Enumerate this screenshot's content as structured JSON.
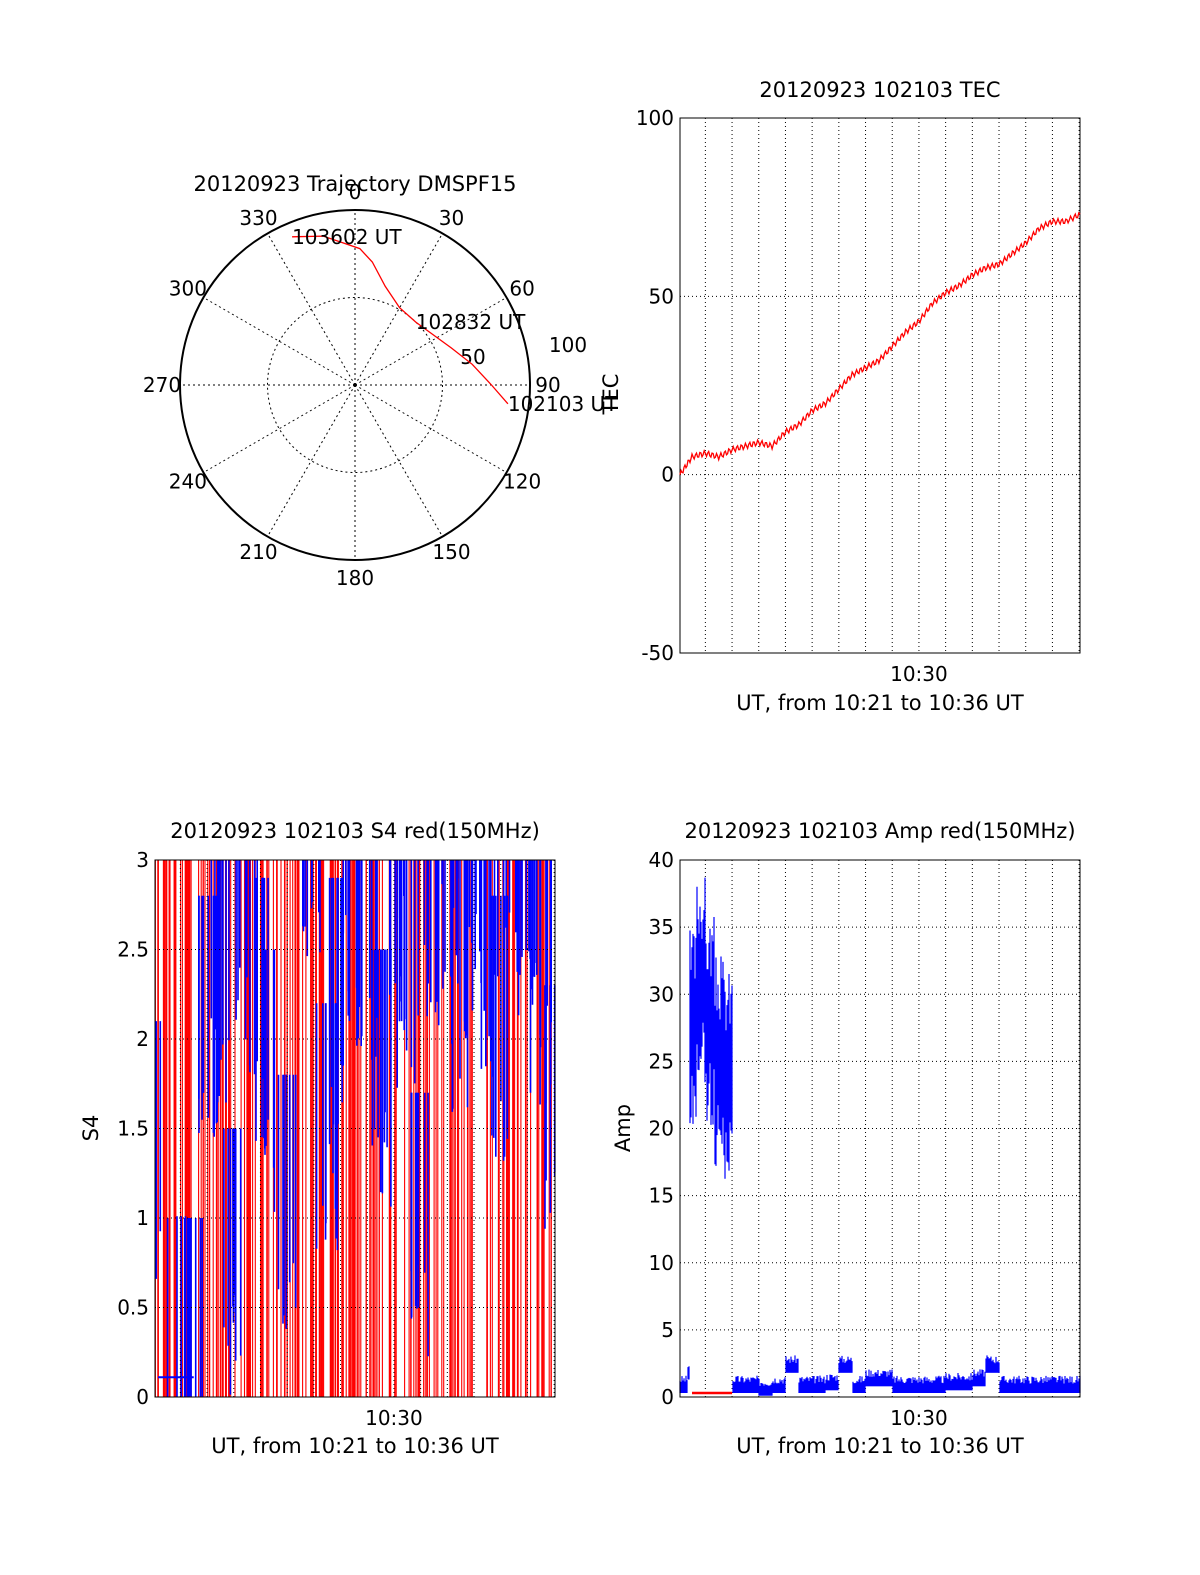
{
  "chart_data": [
    {
      "type": "polar-trajectory",
      "title": "20120923 Trajectory DMSPF15",
      "angle_labels": [
        "0",
        "30",
        "60",
        "90",
        "120",
        "150",
        "180",
        "210",
        "240",
        "270",
        "300",
        "330"
      ],
      "radial_labels": [
        "50",
        "100"
      ],
      "rlim": [
        0,
        100
      ],
      "trajectory": {
        "color": "#ff0000",
        "points": [
          {
            "azimuth": 97,
            "elevation_scale": 88
          },
          {
            "azimuth": 90,
            "elevation_scale": 78
          },
          {
            "azimuth": 80,
            "elevation_scale": 68
          },
          {
            "azimuth": 69,
            "elevation_scale": 59
          },
          {
            "azimuth": 57,
            "elevation_scale": 53
          },
          {
            "azimuth": 44,
            "elevation_scale": 50
          },
          {
            "azimuth": 30,
            "elevation_scale": 51
          },
          {
            "azimuth": 17,
            "elevation_scale": 59
          },
          {
            "azimuth": 8,
            "elevation_scale": 71
          },
          {
            "azimuth": 2,
            "elevation_scale": 78
          },
          {
            "azimuth": -12,
            "elevation_scale": 87
          },
          {
            "azimuth": -23,
            "elevation_scale": 92
          }
        ],
        "labels": [
          {
            "text": "102103 UT",
            "azimuth": 97,
            "elevation_scale": 88
          },
          {
            "text": "102832 UT",
            "azimuth": 44,
            "elevation_scale": 50
          },
          {
            "text": "103602 UT",
            "azimuth": -23,
            "elevation_scale": 92
          }
        ]
      }
    },
    {
      "type": "line",
      "title": "20120923 102103 TEC",
      "ylabel": "TEC",
      "xlabel": "UT, from 10:21 to 10:36 UT",
      "xlim": [
        "10:21:03",
        "10:36:02"
      ],
      "ylim": [
        -50,
        100
      ],
      "yticks": [
        -50,
        0,
        50,
        100
      ],
      "xtick_labels": [
        {
          "label": "10:30",
          "time": "10:30:00"
        }
      ],
      "grid": true,
      "series": [
        {
          "color": "#ff0000",
          "x": [
            "10:21:03",
            "10:21:30",
            "10:22:00",
            "10:22:30",
            "10:23:00",
            "10:23:30",
            "10:24:00",
            "10:24:30",
            "10:25:00",
            "10:25:30",
            "10:26:00",
            "10:26:30",
            "10:27:00",
            "10:27:30",
            "10:28:00",
            "10:28:30",
            "10:29:00",
            "10:29:30",
            "10:30:00",
            "10:30:30",
            "10:31:00",
            "10:31:30",
            "10:32:00",
            "10:32:30",
            "10:33:00",
            "10:33:30",
            "10:34:00",
            "10:34:30",
            "10:35:00",
            "10:35:30",
            "10:36:02"
          ],
          "y": [
            0,
            5,
            6,
            5,
            7,
            8,
            9,
            8,
            12,
            14,
            18,
            20,
            24,
            28,
            30,
            32,
            36,
            40,
            43,
            48,
            51,
            53,
            56,
            58,
            59,
            62,
            65,
            69,
            71,
            71,
            73
          ]
        }
      ]
    },
    {
      "type": "line",
      "title": "20120923 102103 S4 red(150MHz)",
      "ylabel": "S4",
      "xlabel": "UT, from 10:21 to 10:36 UT",
      "xlim": [
        "10:21:03",
        "10:36:02"
      ],
      "ylim": [
        0,
        3
      ],
      "yticks": [
        0,
        0.5,
        1,
        1.5,
        2,
        2.5,
        3
      ],
      "xtick_labels": [
        {
          "label": "10:30",
          "time": "10:30:00"
        }
      ],
      "grid": true,
      "note_series": "red and blue series oscillate rapidly between 0 and the 3 limit",
      "series": [
        {
          "color": "#ff0000",
          "x": [
            "10:21:03",
            "10:22:00",
            "10:23:00",
            "10:24:00",
            "10:25:00",
            "10:26:00",
            "10:27:00",
            "10:28:00",
            "10:29:00",
            "10:30:00",
            "10:31:00",
            "10:32:00",
            "10:33:00",
            "10:34:00",
            "10:35:00",
            "10:36:02"
          ],
          "y": [
            3,
            3,
            3,
            3,
            3,
            3,
            3,
            3,
            3,
            3,
            3,
            3,
            3,
            3,
            3,
            3
          ]
        },
        {
          "color": "#0000ff",
          "x": [
            "10:21:03",
            "10:21:10",
            "10:21:20",
            "10:22:00",
            "10:22:30",
            "10:23:00",
            "10:23:30",
            "10:24:00",
            "10:24:30",
            "10:25:00",
            "10:25:30",
            "10:26:00",
            "10:27:00",
            "10:27:30",
            "10:28:00",
            "10:28:30",
            "10:29:00",
            "10:29:30",
            "10:30:00",
            "10:30:30",
            "10:31:00",
            "10:31:30",
            "10:32:00",
            "10:32:30",
            "10:33:00",
            "10:33:30",
            "10:34:00",
            "10:34:30",
            "10:35:00",
            "10:35:30",
            "10:36:02"
          ],
          "y": [
            1.2,
            0.8,
            0.1,
            0.11,
            0.1,
            1.9,
            2.2,
            0.6,
            2.4,
            2.0,
            1.6,
            0.9,
            2.9,
            1.3,
            2.0,
            2.7,
            2.3,
            1.6,
            2.8,
            2.2,
            0.8,
            2.6,
            2.9,
            2.1,
            2.7,
            2.4,
            1.9,
            2.8,
            2.6,
            2.2,
            1.4
          ]
        }
      ]
    },
    {
      "type": "line",
      "title": "20120923 102103 Amp red(150MHz)",
      "ylabel": "Amp",
      "xlabel": "UT, from 10:21 to 10:36 UT",
      "xlim": [
        "10:21:03",
        "10:36:02"
      ],
      "ylim": [
        0,
        40
      ],
      "yticks": [
        0,
        5,
        10,
        15,
        20,
        25,
        30,
        35,
        40
      ],
      "xtick_labels": [
        {
          "label": "10:30",
          "time": "10:30:00"
        }
      ],
      "grid": true,
      "series": [
        {
          "color": "#0000ff",
          "x": [
            "10:21:03",
            "10:21:20",
            "10:21:25",
            "10:21:40",
            "10:22:00",
            "10:22:20",
            "10:22:40",
            "10:23:00",
            "10:23:01",
            "10:24:00",
            "10:24:30",
            "10:25:00",
            "10:25:30",
            "10:26:00",
            "10:26:30",
            "10:27:00",
            "10:27:30",
            "10:28:00",
            "10:29:00",
            "10:30:00",
            "10:31:00",
            "10:32:00",
            "10:32:30",
            "10:33:00",
            "10:33:30",
            "10:34:00",
            "10:35:00",
            "10:36:02"
          ],
          "y": [
            1,
            2,
            30,
            34,
            31,
            28,
            27,
            31,
            1,
            0.8,
            1,
            2.5,
            1,
            1,
            1.2,
            2.5,
            1,
            1.5,
            1,
            1,
            1.2,
            1.5,
            2.5,
            1,
            1,
            1,
            1,
            1
          ]
        },
        {
          "color": "#ff0000",
          "x": [
            "10:21:30",
            "10:22:00",
            "10:22:30",
            "10:23:00"
          ],
          "y": [
            0.3,
            0.3,
            0.3,
            0.3
          ]
        }
      ]
    }
  ]
}
